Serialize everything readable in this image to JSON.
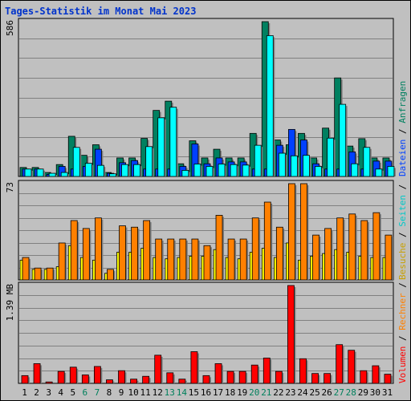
{
  "chart_data": {
    "type": "bar",
    "title": "Tages-Statistik im Monat Mai 2023",
    "categories": [
      "1",
      "2",
      "3",
      "4",
      "5",
      "6",
      "7",
      "8",
      "9",
      "10",
      "11",
      "12",
      "13",
      "14",
      "15",
      "16",
      "17",
      "18",
      "19",
      "20",
      "21",
      "22",
      "23",
      "24",
      "25",
      "26",
      "27",
      "28",
      "29",
      "30",
      "31"
    ],
    "weekend_categories": [
      "6",
      "7",
      "13",
      "14",
      "20",
      "21",
      "27",
      "28"
    ],
    "colors": {
      "anfragen": "#008060",
      "dateien": "#0040ff",
      "seiten": "#00ffff",
      "besuche": "#ffff00",
      "rechner": "#ff8000",
      "volumen": "#ff0000",
      "weekend_label": "#00805c",
      "weekday_label": "#000000",
      "title": "#0033cc"
    },
    "panels": [
      {
        "id": "hits",
        "ymax_label": "586",
        "ymax": 586,
        "series": [
          {
            "key": "anfragen",
            "values": [
              34,
              34,
              15,
              45,
              152,
              80,
              120,
              15,
              70,
              70,
              144,
              250,
              285,
              48,
              135,
              70,
              103,
              70,
              70,
              163,
              586,
              138,
              120,
              163,
              70,
              183,
              373,
              115,
              143,
              70,
              70
            ]
          },
          {
            "key": "dateien",
            "values": [
              28,
              28,
              8,
              38,
              28,
              38,
              103,
              12,
              52,
              60,
              28,
              28,
              28,
              38,
              123,
              48,
              70,
              55,
              55,
              28,
              28,
              118,
              178,
              138,
              48,
              28,
              28,
              93,
              28,
              58,
              58
            ]
          },
          {
            "key": "seiten",
            "values": [
              28,
              28,
              12,
              15,
              110,
              50,
              42,
              10,
              45,
              45,
              113,
              222,
              262,
              23,
              47,
              38,
              47,
              45,
              43,
              118,
              533,
              88,
              78,
              80,
              38,
              145,
              273,
              48,
              110,
              28,
              38
            ]
          }
        ]
      },
      {
        "id": "visits",
        "ymax_label": "73",
        "ymax": 73,
        "series": [
          {
            "key": "besuche",
            "values": [
              15,
              8,
              8,
              10,
              26,
              17,
              15,
              5,
              21,
              21,
              24,
              17,
              16,
              17,
              18,
              18,
              23,
              17,
              16,
              21,
              24,
              17,
              28,
              15,
              18,
              20,
              23,
              21,
              18,
              17,
              17
            ]
          },
          {
            "key": "rechner",
            "values": [
              17,
              9,
              9,
              28,
              45,
              39,
              47,
              8,
              41,
              40,
              45,
              31,
              31,
              31,
              31,
              26,
              49,
              31,
              31,
              47,
              59,
              40,
              73,
              73,
              34,
              39,
              47,
              50,
              45,
              51,
              34
            ]
          }
        ]
      },
      {
        "id": "volume",
        "ymax_label": "1.39 MB",
        "ymax": 1.39,
        "series": [
          {
            "key": "volumen",
            "values": [
              0.11,
              0.28,
              0.02,
              0.17,
              0.23,
              0.12,
              0.24,
              0.05,
              0.18,
              0.06,
              0.1,
              0.4,
              0.15,
              0.06,
              0.45,
              0.11,
              0.28,
              0.17,
              0.17,
              0.26,
              0.36,
              0.17,
              1.39,
              0.35,
              0.14,
              0.14,
              0.55,
              0.47,
              0.18,
              0.25,
              0.13
            ]
          }
        ]
      }
    ],
    "right_labels": [
      {
        "panel": "hits",
        "parts": [
          {
            "text": "Dateien",
            "key": "dateien"
          },
          {
            "text": " / ",
            "key": "sep"
          },
          {
            "text": "Anfragen",
            "key": "anfragen"
          }
        ]
      },
      {
        "panel": "visits",
        "parts": [
          {
            "text": "Besuche",
            "key": "besuche"
          },
          {
            "text": " / ",
            "key": "sep"
          },
          {
            "text": "Seiten",
            "key": "seiten"
          },
          {
            "text": " / ",
            "key": "sep"
          }
        ]
      },
      {
        "panel": "volume",
        "parts": [
          {
            "text": "Volumen",
            "key": "volumen"
          },
          {
            "text": " / ",
            "key": "sep"
          },
          {
            "text": "Rechner",
            "key": "rechner"
          },
          {
            "text": " / ",
            "key": "sep"
          }
        ]
      }
    ]
  }
}
